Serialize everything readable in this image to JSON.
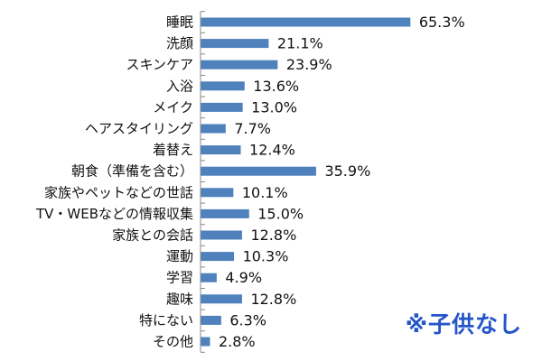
{
  "chart_data": {
    "type": "bar",
    "orientation": "horizontal",
    "categories": [
      "睡眠",
      "洗顔",
      "スキンケア",
      "入浴",
      "メイク",
      "ヘアスタイリング",
      "着替え",
      "朝食（準備を含む）",
      "家族やペットなどの世話",
      "TV・WEBなどの情報収集",
      "家族との会話",
      "運動",
      "学習",
      "趣味",
      "特にない",
      "その他"
    ],
    "values": [
      65.3,
      21.1,
      23.9,
      13.6,
      13.0,
      7.7,
      12.4,
      35.9,
      10.1,
      15.0,
      12.8,
      10.3,
      4.9,
      12.8,
      6.3,
      2.8
    ],
    "value_labels": [
      "65.3%",
      "21.1%",
      "23.9%",
      "13.6%",
      "13.0%",
      "7.7%",
      "12.4%",
      "35.9%",
      "10.1%",
      "15.0%",
      "12.8%",
      "10.3%",
      "4.9%",
      "12.8%",
      "6.3%",
      "2.8%"
    ],
    "title": "",
    "xlabel": "",
    "ylabel": "",
    "xlim": [
      0,
      100
    ],
    "bar_color": "#4f81bd",
    "grid": false,
    "legend": "none"
  },
  "note": "※子供なし",
  "note_color": "#2455c9"
}
